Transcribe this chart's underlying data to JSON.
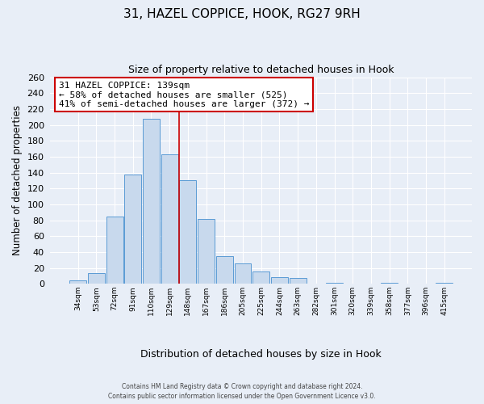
{
  "title_line1": "31, HAZEL COPPICE, HOOK, RG27 9RH",
  "title_line2": "Size of property relative to detached houses in Hook",
  "xlabel": "Distribution of detached houses by size in Hook",
  "ylabel": "Number of detached properties",
  "bar_color": "#c8d9ed",
  "bar_edge_color": "#5b9bd5",
  "categories": [
    "34sqm",
    "53sqm",
    "72sqm",
    "91sqm",
    "110sqm",
    "129sqm",
    "148sqm",
    "167sqm",
    "186sqm",
    "205sqm",
    "225sqm",
    "244sqm",
    "263sqm",
    "282sqm",
    "301sqm",
    "320sqm",
    "339sqm",
    "358sqm",
    "377sqm",
    "396sqm",
    "415sqm"
  ],
  "values": [
    4,
    13,
    85,
    137,
    208,
    163,
    130,
    82,
    35,
    26,
    15,
    8,
    7,
    0,
    1,
    0,
    0,
    1,
    0,
    0,
    1
  ],
  "ylim": [
    0,
    260
  ],
  "yticks": [
    0,
    20,
    40,
    60,
    80,
    100,
    120,
    140,
    160,
    180,
    200,
    220,
    240,
    260
  ],
  "vline_x": 5.5,
  "vline_color": "#cc0000",
  "annotation_text": "31 HAZEL COPPICE: 139sqm\n← 58% of detached houses are smaller (525)\n41% of semi-detached houses are larger (372) →",
  "annotation_box_color": "#ffffff",
  "annotation_border_color": "#cc0000",
  "footer_line1": "Contains HM Land Registry data © Crown copyright and database right 2024.",
  "footer_line2": "Contains public sector information licensed under the Open Government Licence v3.0.",
  "background_color": "#e8eef7",
  "plot_bg_color": "#e8eef7",
  "grid_color": "#ffffff"
}
